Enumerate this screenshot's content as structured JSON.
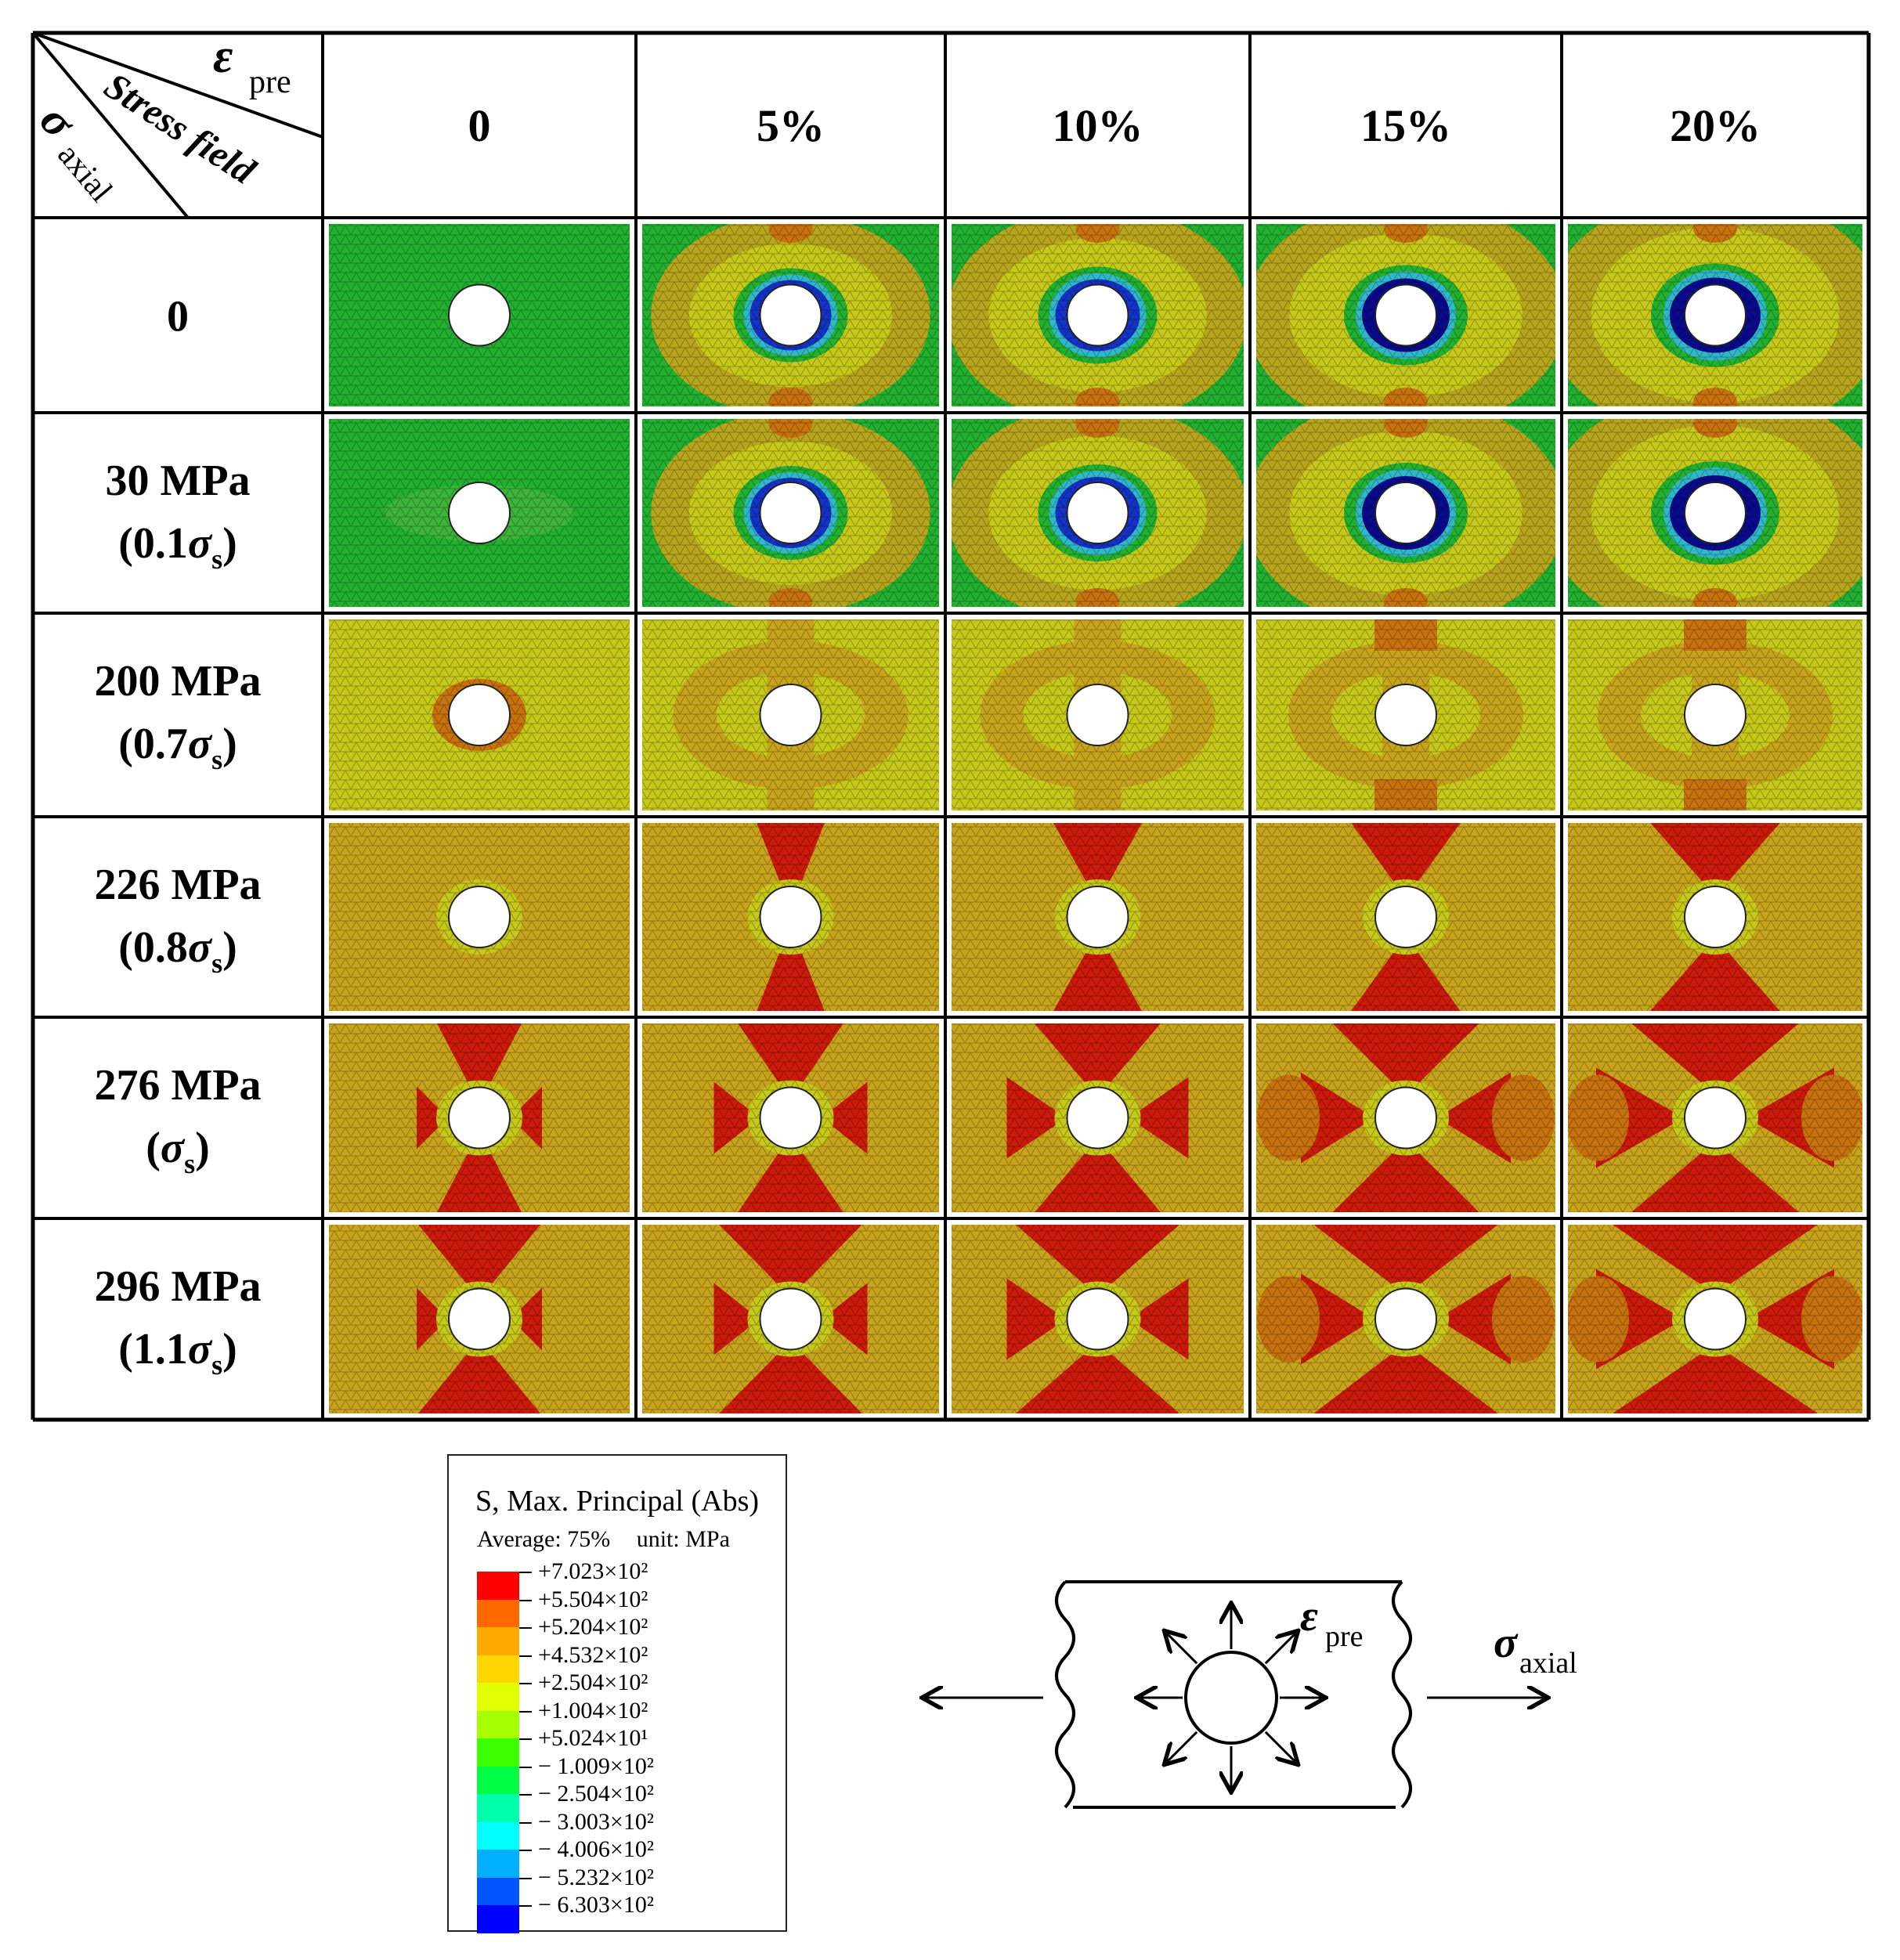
{
  "header": {
    "corner_labels": {
      "epsilon_symbol": "ε",
      "epsilon_sub": "pre",
      "stress_field": "Stress field",
      "sigma_symbol": "σ",
      "sigma_sub": "axial"
    },
    "columns": [
      "0",
      "5%",
      "10%",
      "15%",
      "20%"
    ]
  },
  "rows": [
    {
      "line1": "0",
      "line2_pre": "",
      "line2_sym": "",
      "line2_sub": "",
      "line2_post": ""
    },
    {
      "line1": "30 MPa",
      "line2_pre": "(0.1",
      "line2_sym": "σ",
      "line2_sub": "s",
      "line2_post": ")"
    },
    {
      "line1": "200 MPa",
      "line2_pre": "(0.7",
      "line2_sym": "σ",
      "line2_sub": "s",
      "line2_post": ")"
    },
    {
      "line1": "226 MPa",
      "line2_pre": "(0.8",
      "line2_sym": "σ",
      "line2_sub": "s",
      "line2_post": ")"
    },
    {
      "line1": "276 MPa",
      "line2_pre": "(",
      "line2_sym": "σ",
      "line2_sub": "s",
      "line2_post": ")"
    },
    {
      "line1": "296 MPa",
      "line2_pre": "(1.1",
      "line2_sym": "σ",
      "line2_sub": "s",
      "line2_post": ")"
    }
  ],
  "contour_levels": [
    [
      "green",
      "green",
      "green",
      "green",
      "green"
    ],
    [
      "green",
      "green",
      "green",
      "green",
      "green"
    ],
    [
      "yellow",
      "yellow",
      "yellow",
      "yellow",
      "yellow"
    ],
    [
      "ochre",
      "ochre",
      "ochre",
      "ochre",
      "ochre"
    ],
    [
      "ochre",
      "ochre",
      "ochre",
      "ochre",
      "ochre"
    ],
    [
      "ochre",
      "ochre",
      "ochre",
      "ochre",
      "ochre"
    ]
  ],
  "palette": {
    "green": "#22b030",
    "yellow": "#c6c81a",
    "ochre": "#c8a41c",
    "red": "#cc1a0a",
    "orange": "#c8720e",
    "blue": "#1432c8",
    "darkblue": "#0a0a8c",
    "cyan": "#30b8c8"
  },
  "legend": {
    "title": "S, Max. Principal (Abs)",
    "average": "Average: 75%",
    "unit": "unit: MPa",
    "colors": [
      "#ff0000",
      "#ff6a00",
      "#ffaa00",
      "#ffd700",
      "#e2ff00",
      "#a6ff00",
      "#3cff00",
      "#00ff44",
      "#00ffaa",
      "#00ffff",
      "#00b0ff",
      "#0055ff",
      "#0000ff"
    ],
    "labels": [
      "+7.023×10²",
      "+5.504×10²",
      "+5.204×10²",
      "+4.532×10²",
      "+2.504×10²",
      "+1.004×10²",
      "+5.024×10¹",
      "− 1.009×10²",
      "− 2.504×10²",
      "− 3.003×10²",
      "− 4.006×10²",
      "− 5.232×10²",
      "− 6.303×10²"
    ]
  },
  "schematic": {
    "eps_symbol": "ε",
    "eps_sub": "pre",
    "sigma_symbol": "σ",
    "sigma_sub": "axial"
  }
}
